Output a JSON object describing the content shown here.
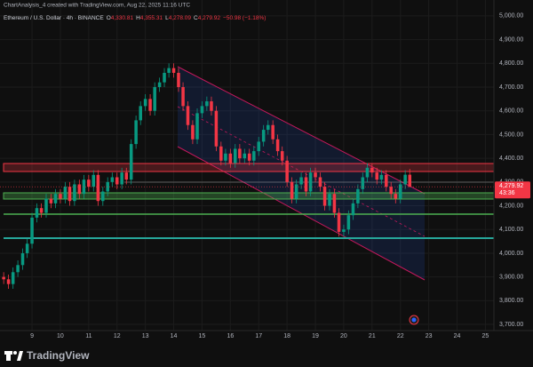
{
  "header": {
    "credit": "ChartAnalysis_4 created with TradingView.com, Aug 22, 2025 11:16 UTC",
    "symbol": "Ethereum / U.S. Dollar · 4h · BINANCE",
    "ohlc": [
      {
        "key": "O",
        "value": "4,330.81"
      },
      {
        "key": "H",
        "value": "4,355.31"
      },
      {
        "key": "L",
        "value": "4,278.09"
      },
      {
        "key": "C",
        "value": "4,279.92"
      }
    ],
    "change": "−50.98 (−1.18%)"
  },
  "brand": "TradingView",
  "chart_data": {
    "type": "candlestick",
    "up_color": "#089981",
    "down_color": "#f23645",
    "grid": true,
    "xlim": [
      7.87,
      25.3
    ],
    "xticks": [
      9,
      10,
      11,
      12,
      13,
      14,
      15,
      16,
      17,
      18,
      19,
      20,
      21,
      22,
      23,
      24,
      25
    ],
    "ylim": [
      3674,
      5067
    ],
    "yticks": [
      {
        "value": 3700,
        "label": "3,700.00"
      },
      {
        "value": 3800,
        "label": "3,800.00"
      },
      {
        "value": 3900,
        "label": "3,900.00"
      },
      {
        "value": 4000,
        "label": "4,000.00"
      },
      {
        "value": 4100,
        "label": "4,100.00"
      },
      {
        "value": 4200,
        "label": "4,200.00"
      },
      {
        "value": 4300,
        "label": "4,300.00"
      },
      {
        "value": 4400,
        "label": "4,400.00"
      },
      {
        "value": 4500,
        "label": "4,500.00"
      },
      {
        "value": 4600,
        "label": "4,600.00"
      },
      {
        "value": 4700,
        "label": "4,700.00"
      },
      {
        "value": 4800,
        "label": "4,800.00"
      },
      {
        "value": 4900,
        "label": "4,900.00"
      },
      {
        "value": 5000,
        "label": "5,000.00"
      }
    ],
    "last_price": {
      "value": 4279.92,
      "label": "4,279.92"
    },
    "countdown": "43:36",
    "x": [
      8,
      8.17,
      8.33,
      8.5,
      8.67,
      8.83,
      9,
      9.17,
      9.33,
      9.5,
      9.67,
      9.83,
      10,
      10.17,
      10.33,
      10.5,
      10.67,
      10.83,
      11,
      11.17,
      11.33,
      11.5,
      11.67,
      11.83,
      12,
      12.17,
      12.33,
      12.5,
      12.67,
      12.83,
      13,
      13.17,
      13.33,
      13.5,
      13.67,
      13.83,
      14,
      14.17,
      14.33,
      14.5,
      14.67,
      14.83,
      15,
      15.17,
      15.33,
      15.5,
      15.67,
      15.83,
      16,
      16.17,
      16.33,
      16.5,
      16.67,
      16.83,
      17,
      17.17,
      17.33,
      17.5,
      17.67,
      17.83,
      18,
      18.17,
      18.33,
      18.5,
      18.67,
      18.83,
      19,
      19.17,
      19.33,
      19.5,
      19.67,
      19.83,
      20,
      20.17,
      20.33,
      20.5,
      20.67,
      20.83,
      21,
      21.17,
      21.33,
      21.5,
      21.67,
      21.83,
      22,
      22.17,
      22.33
    ],
    "open": [
      3900,
      3890,
      3870,
      3920,
      3950,
      4000,
      4040,
      4150,
      4190,
      4170,
      4230,
      4210,
      4250,
      4230,
      4280,
      4220,
      4290,
      4250,
      4310,
      4280,
      4330,
      4220,
      4260,
      4300,
      4320,
      4290,
      4340,
      4310,
      4460,
      4560,
      4620,
      4650,
      4600,
      4700,
      4720,
      4760,
      4780,
      4760,
      4700,
      4620,
      4540,
      4480,
      4590,
      4620,
      4640,
      4600,
      4450,
      4390,
      4420,
      4380,
      4440,
      4400,
      4420,
      4390,
      4430,
      4470,
      4520,
      4540,
      4480,
      4430,
      4390,
      4300,
      4230,
      4290,
      4320,
      4260,
      4340,
      4320,
      4280,
      4200,
      4250,
      4170,
      4090,
      4100,
      4160,
      4210,
      4270,
      4320,
      4360,
      4340,
      4310,
      4330,
      4280,
      4250,
      4230,
      4290,
      4330.81
    ],
    "high": [
      3920,
      3910,
      3940,
      3970,
      4020,
      4060,
      4170,
      4210,
      4210,
      4250,
      4250,
      4270,
      4270,
      4300,
      4300,
      4310,
      4310,
      4330,
      4330,
      4350,
      4350,
      4280,
      4320,
      4340,
      4340,
      4360,
      4360,
      4480,
      4580,
      4640,
      4670,
      4670,
      4720,
      4740,
      4780,
      4800,
      4800,
      4780,
      4720,
      4640,
      4560,
      4610,
      4640,
      4660,
      4660,
      4620,
      4470,
      4440,
      4440,
      4460,
      4460,
      4440,
      4440,
      4450,
      4490,
      4540,
      4560,
      4560,
      4500,
      4450,
      4410,
      4320,
      4310,
      4340,
      4340,
      4360,
      4360,
      4340,
      4300,
      4270,
      4270,
      4190,
      4120,
      4180,
      4230,
      4290,
      4340,
      4380,
      4380,
      4360,
      4350,
      4350,
      4300,
      4270,
      4310,
      4350,
      4355.31
    ],
    "low": [
      3870,
      3850,
      3850,
      3900,
      3930,
      3980,
      4020,
      4130,
      4150,
      4150,
      4190,
      4190,
      4210,
      4210,
      4200,
      4200,
      4230,
      4230,
      4260,
      4260,
      4200,
      4200,
      4240,
      4280,
      4270,
      4270,
      4290,
      4290,
      4440,
      4540,
      4600,
      4580,
      4580,
      4680,
      4700,
      4740,
      4740,
      4680,
      4600,
      4520,
      4460,
      4460,
      4570,
      4600,
      4580,
      4430,
      4370,
      4370,
      4360,
      4360,
      4380,
      4380,
      4370,
      4370,
      4410,
      4450,
      4500,
      4460,
      4410,
      4370,
      4280,
      4210,
      4210,
      4270,
      4240,
      4240,
      4300,
      4260,
      4180,
      4180,
      4150,
      4070,
      4070,
      4080,
      4140,
      4190,
      4250,
      4300,
      4320,
      4290,
      4290,
      4260,
      4230,
      4210,
      4210,
      4270,
      4278.09
    ],
    "close": [
      3890,
      3870,
      3920,
      3950,
      4000,
      4040,
      4150,
      4190,
      4170,
      4230,
      4210,
      4250,
      4230,
      4280,
      4220,
      4290,
      4250,
      4310,
      4280,
      4330,
      4220,
      4260,
      4300,
      4320,
      4290,
      4340,
      4310,
      4460,
      4560,
      4620,
      4650,
      4600,
      4700,
      4720,
      4760,
      4780,
      4760,
      4700,
      4620,
      4540,
      4480,
      4590,
      4620,
      4640,
      4600,
      4450,
      4390,
      4420,
      4380,
      4440,
      4400,
      4420,
      4390,
      4430,
      4470,
      4520,
      4540,
      4480,
      4430,
      4390,
      4300,
      4230,
      4290,
      4320,
      4260,
      4340,
      4320,
      4280,
      4200,
      4250,
      4170,
      4090,
      4100,
      4160,
      4210,
      4270,
      4320,
      4360,
      4340,
      4310,
      4330,
      4280,
      4250,
      4230,
      4290,
      4330.81,
      4279.92
    ]
  }
}
